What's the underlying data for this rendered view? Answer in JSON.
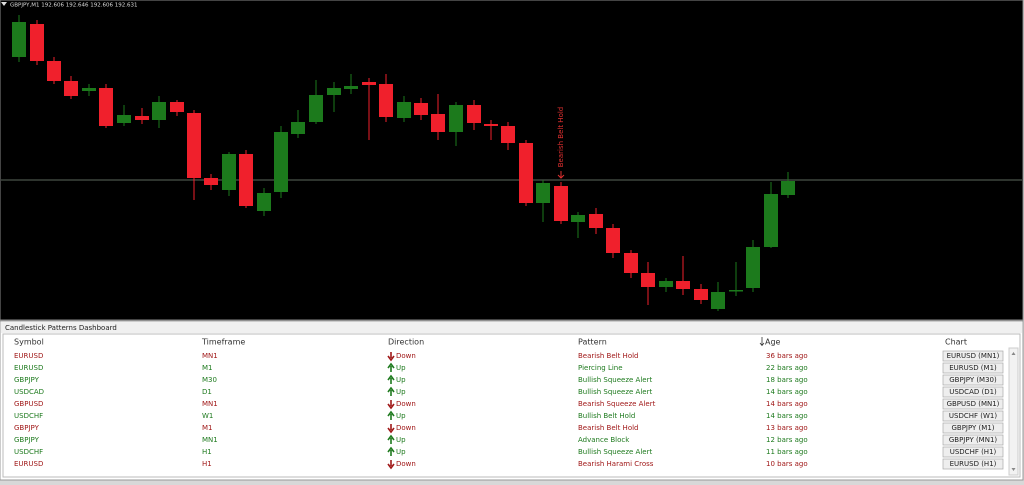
{
  "chart": {
    "header": "GBPJPY,M1  192.606 192.646 192.606 192.631",
    "annotation": "Bearish Belt Hold"
  },
  "dashboard": {
    "title": "Candlestick Patterns Dashboard",
    "columns": [
      "Symbol",
      "Timeframe",
      "Direction",
      "Pattern",
      "Age",
      "Chart"
    ],
    "rows": [
      {
        "cells": [
          "EURUSD",
          "MN1",
          "Down",
          "Bearish Belt Hold",
          "36 bars ago",
          "EURUSD (MN1)"
        ],
        "color": "#a01818"
      },
      {
        "cells": [
          "EURUSD",
          "M1",
          "Up",
          "Piercing Line",
          "22 bars ago",
          "EURUSD (M1)"
        ],
        "color": "#1e7a1e"
      },
      {
        "cells": [
          "GBPJPY",
          "M30",
          "Up",
          "Bullish Squeeze Alert",
          "18 bars ago",
          "GBPJPY (M30)"
        ],
        "color": "#1e7a1e"
      },
      {
        "cells": [
          "USDCAD",
          "D1",
          "Up",
          "Bullish Squeeze Alert",
          "14 bars ago",
          "USDCAD (D1)"
        ],
        "color": "#1e7a1e"
      },
      {
        "cells": [
          "GBPUSD",
          "MN1",
          "Down",
          "Bearish Squeeze Alert",
          "14 bars ago",
          "GBPUSD (MN1)"
        ],
        "color": "#a01818"
      },
      {
        "cells": [
          "USDCHF",
          "W1",
          "Up",
          "Bullish Belt Hold",
          "14 bars ago",
          "USDCHF (W1)"
        ],
        "color": "#1e7a1e"
      },
      {
        "cells": [
          "GBPJPY",
          "M1",
          "Down",
          "Bearish Belt Hold",
          "13 bars ago",
          "GBPJPY (M1)"
        ],
        "color": "#a01818"
      },
      {
        "cells": [
          "GBPJPY",
          "MN1",
          "Up",
          "Advance Block",
          "12 bars ago",
          "GBPJPY (MN1)"
        ],
        "color": "#1e7a1e"
      },
      {
        "cells": [
          "USDCHF",
          "H1",
          "Up",
          "Bullish Squeeze Alert",
          "11 bars ago",
          "USDCHF (H1)"
        ],
        "color": "#1e7a1e"
      },
      {
        "cells": [
          "EURUSD",
          "H1",
          "Down",
          "Bearish Harami Cross",
          "10 bars ago",
          "EURUSD (H1)"
        ],
        "color": "#a01818"
      }
    ]
  }
}
